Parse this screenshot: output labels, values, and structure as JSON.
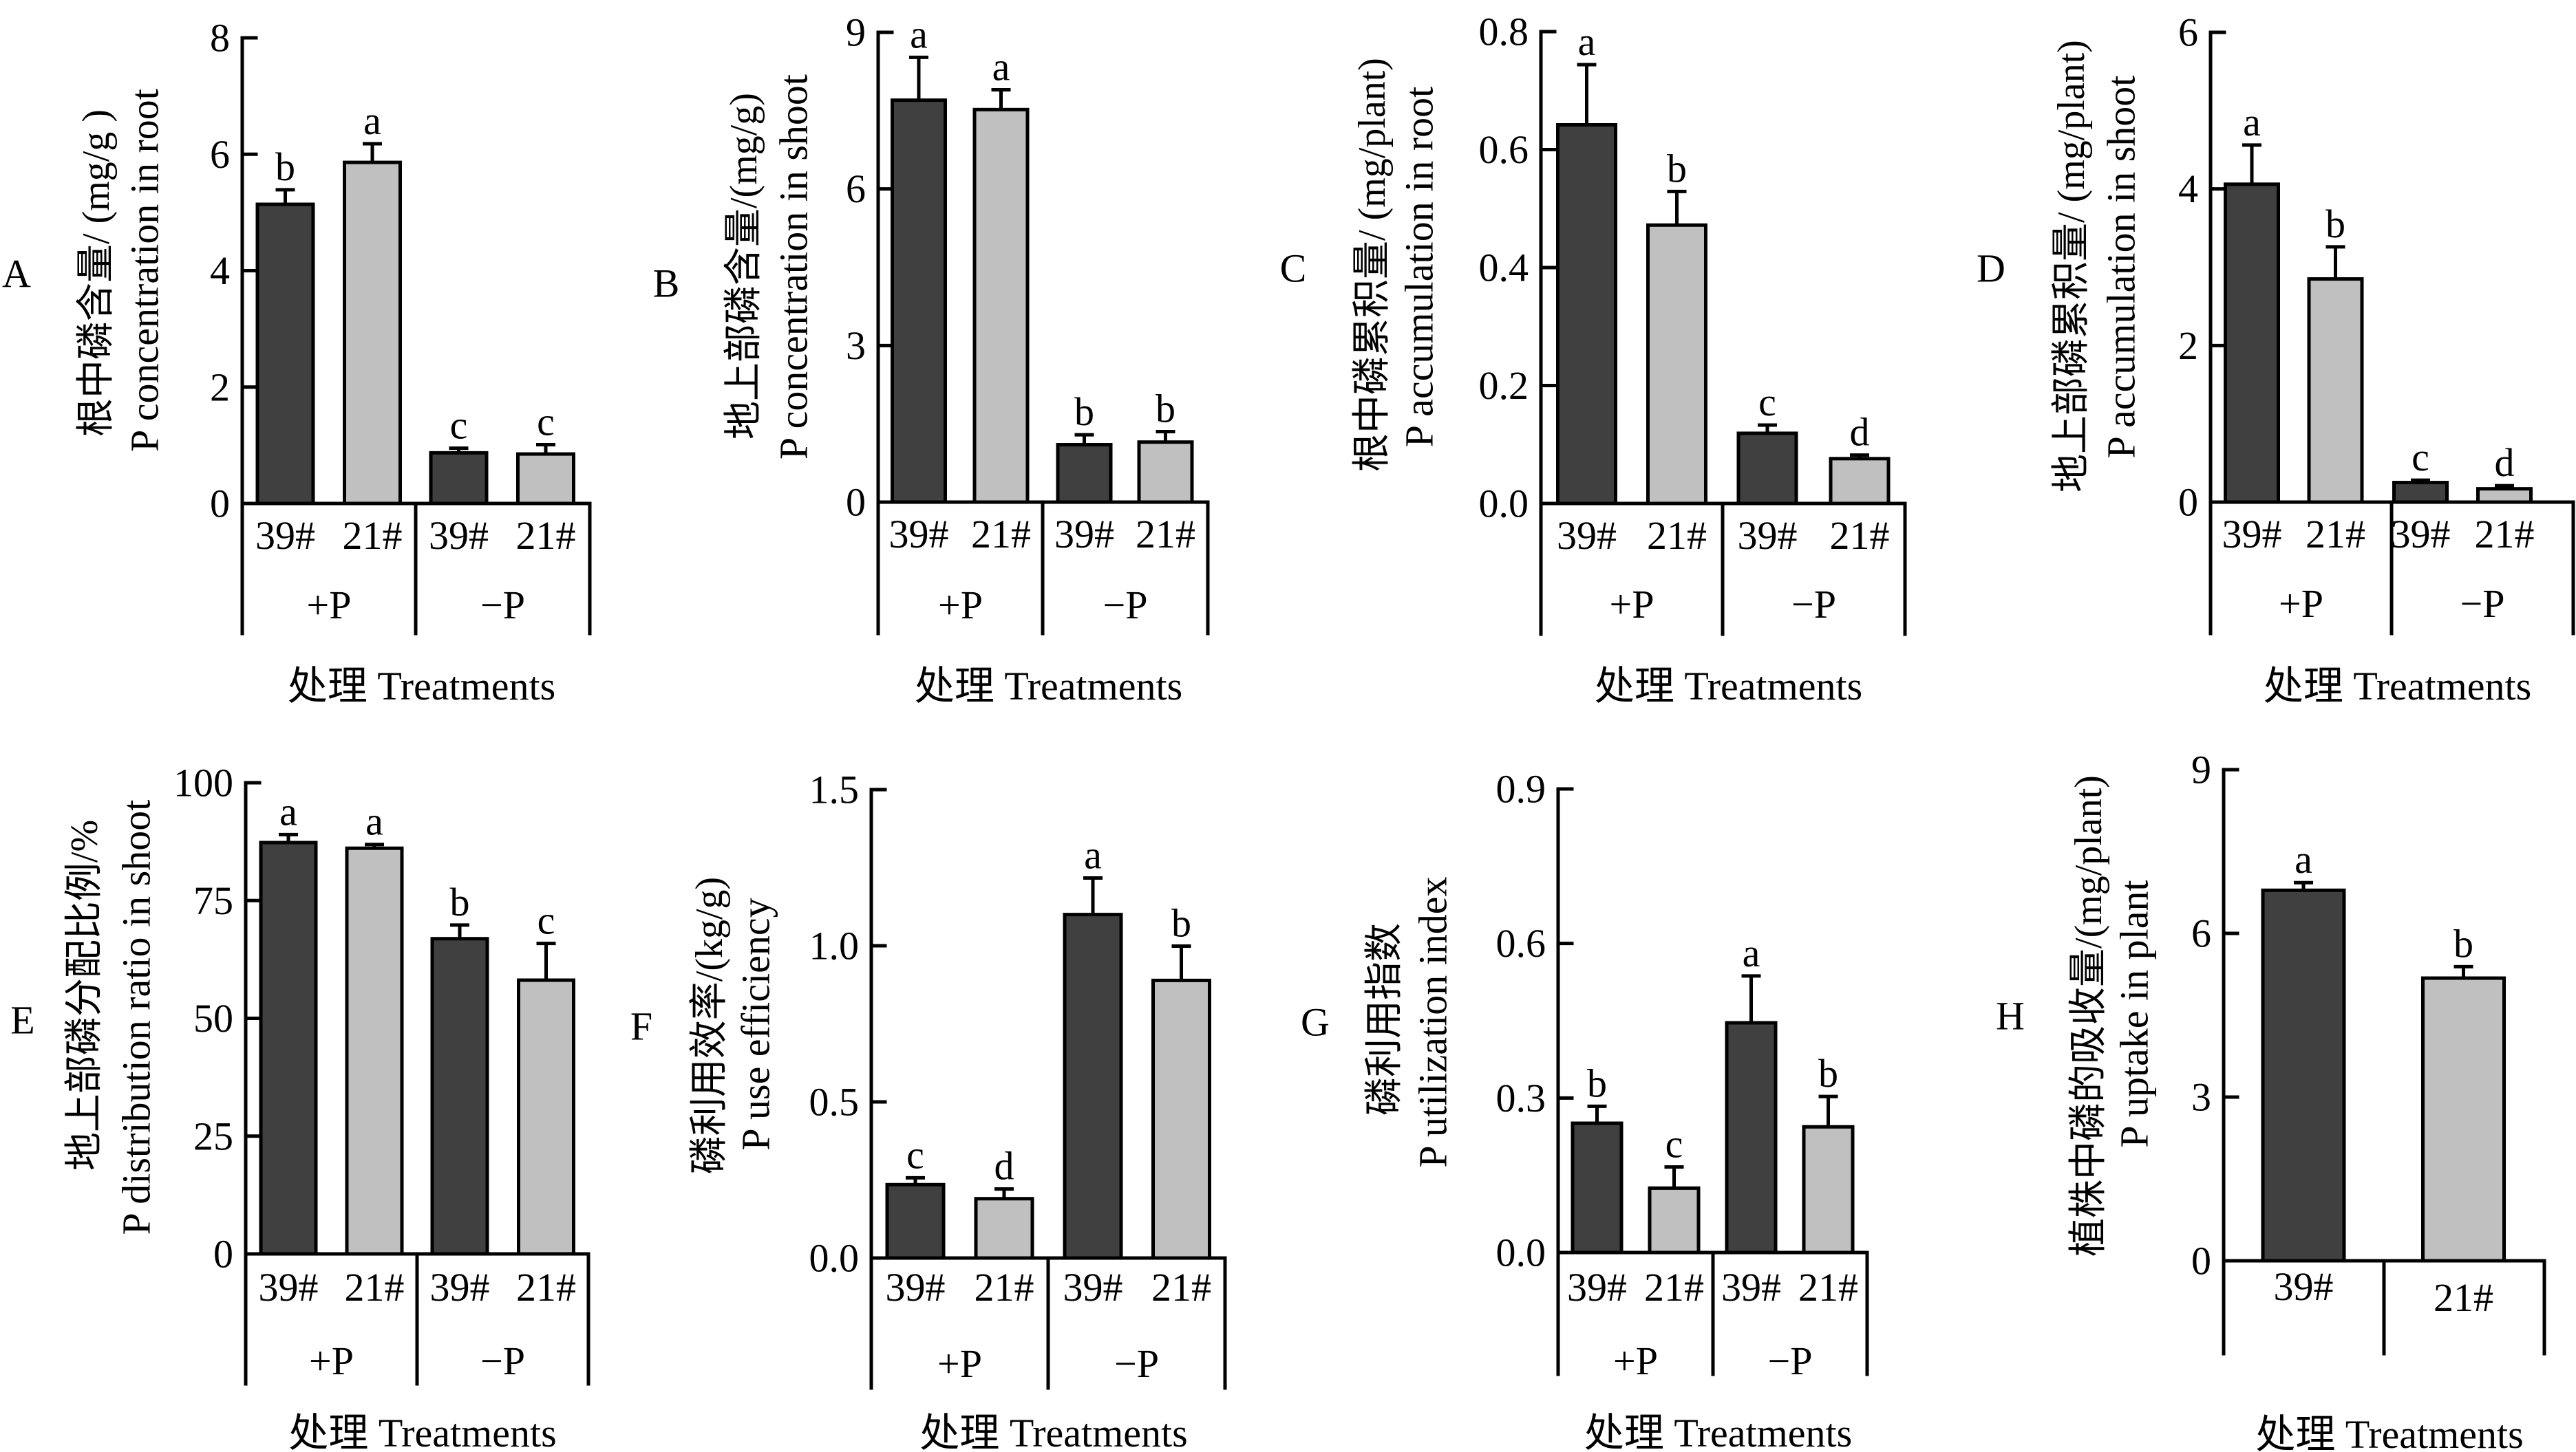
{
  "colors": {
    "39#": "#404040",
    "21#": "#c0c0c0",
    "axis": "#000000"
  },
  "chart_data": [
    {
      "panel": "A",
      "type": "bar",
      "title": "",
      "ylabel_cn": "根中磷含量/ (mg/g )",
      "ylabel_en": "P concentration in root",
      "xlabel": "处理 Treatments",
      "categories": [
        "39#",
        "21#",
        "39#",
        "21#"
      ],
      "groups": [
        {
          "label": "+P"
        },
        {
          "label": "−P"
        }
      ],
      "group_of_category": [
        "+P",
        "+P",
        "−P",
        "−P"
      ],
      "values": [
        5.14,
        5.86,
        0.87,
        0.85
      ],
      "errors": [
        0.25,
        0.32,
        0.08,
        0.16
      ],
      "letters": [
        "b",
        "a",
        "c",
        "c"
      ],
      "ylim": [
        0,
        8
      ],
      "yticks": [
        "0",
        "2",
        "4",
        "6",
        "8"
      ],
      "grid": false,
      "legend": "none"
    },
    {
      "panel": "B",
      "type": "bar",
      "title": "",
      "ylabel_cn": "地上部磷含量/(mg/g)",
      "ylabel_en": "P concentration in shoot",
      "xlabel": "处理 Treatments",
      "categories": [
        "39#",
        "21#",
        "39#",
        "21#"
      ],
      "groups": [
        {
          "label": "+P"
        },
        {
          "label": "−P"
        }
      ],
      "group_of_category": [
        "+P",
        "+P",
        "−P",
        "−P"
      ],
      "values": [
        7.7,
        7.52,
        1.1,
        1.15
      ],
      "errors": [
        0.82,
        0.38,
        0.19,
        0.2
      ],
      "letters": [
        "a",
        "a",
        "b",
        "b"
      ],
      "ylim": [
        0,
        9
      ],
      "yticks": [
        "0",
        "3",
        "6",
        "9"
      ],
      "grid": false,
      "legend": "none"
    },
    {
      "panel": "C",
      "type": "bar",
      "title": "",
      "ylabel_cn": "根中磷累积量/ (mg/plant)",
      "ylabel_en": "P accumulation in root",
      "xlabel": "处理 Treatments",
      "categories": [
        "39#",
        "21#",
        "39#",
        "21#"
      ],
      "groups": [
        {
          "label": "+P"
        },
        {
          "label": "−P"
        }
      ],
      "group_of_category": [
        "+P",
        "+P",
        "−P",
        "−P"
      ],
      "values": [
        0.642,
        0.472,
        0.119,
        0.076
      ],
      "errors": [
        0.102,
        0.057,
        0.014,
        0.006
      ],
      "letters": [
        "a",
        "b",
        "c",
        "d"
      ],
      "ylim": [
        0,
        0.8
      ],
      "yticks": [
        "0.0",
        "0.2",
        "0.4",
        "0.6",
        "0.8"
      ],
      "grid": false,
      "legend": "none"
    },
    {
      "panel": "D",
      "type": "bar",
      "title": "",
      "ylabel_cn": "地上部磷累积量/ (mg/plant)",
      "ylabel_en": "P accumulation in shoot",
      "xlabel": "处理 Treatments",
      "categories": [
        "39#",
        "21#",
        "39#",
        "21#"
      ],
      "groups": [
        {
          "label": "+P"
        },
        {
          "label": "−P"
        }
      ],
      "group_of_category": [
        "+P",
        "+P",
        "−P",
        "−P"
      ],
      "values": [
        4.06,
        2.85,
        0.25,
        0.17
      ],
      "errors": [
        0.5,
        0.41,
        0.03,
        0.04
      ],
      "letters": [
        "a",
        "b",
        "c",
        "d"
      ],
      "ylim": [
        0,
        6
      ],
      "yticks": [
        "0",
        "2",
        "4",
        "6"
      ],
      "grid": false,
      "legend": "none"
    },
    {
      "panel": "E",
      "type": "bar",
      "title": "",
      "ylabel_cn": "地上部磷分配比例/%",
      "ylabel_en": "P distribution ratio in shoot",
      "xlabel": "处理 Treatments",
      "categories": [
        "39#",
        "21#",
        "39#",
        "21#"
      ],
      "groups": [
        {
          "label": "+P"
        },
        {
          "label": "−P"
        }
      ],
      "group_of_category": [
        "+P",
        "+P",
        "−P",
        "−P"
      ],
      "values": [
        87.3,
        86.1,
        66.9,
        58.1
      ],
      "errors": [
        1.7,
        0.8,
        2.9,
        7.8
      ],
      "letters": [
        "a",
        "a",
        "b",
        "c"
      ],
      "ylim": [
        0,
        100
      ],
      "yticks": [
        "0",
        "25",
        "50",
        "75",
        "100"
      ],
      "grid": false,
      "legend": "none"
    },
    {
      "panel": "F",
      "type": "bar",
      "title": "",
      "ylabel_cn": "磷利用效率/(kg/g)",
      "ylabel_en": "P use efficiency",
      "xlabel": "处理 Treatments",
      "categories": [
        "39#",
        "21#",
        "39#",
        "21#"
      ],
      "groups": [
        {
          "label": "+P"
        },
        {
          "label": "−P"
        }
      ],
      "group_of_category": [
        "+P",
        "+P",
        "−P",
        "−P"
      ],
      "values": [
        0.235,
        0.19,
        1.1,
        0.889
      ],
      "errors": [
        0.022,
        0.031,
        0.117,
        0.11
      ],
      "letters": [
        "c",
        "d",
        "a",
        "b"
      ],
      "ylim": [
        0,
        1.5
      ],
      "yticks": [
        "0.0",
        "0.5",
        "1.0",
        "1.5"
      ],
      "grid": false,
      "legend": "none"
    },
    {
      "panel": "G",
      "type": "bar",
      "title": "",
      "ylabel_cn": "磷利用指数",
      "ylabel_en": "P utilization index",
      "xlabel": "处理 Treatments",
      "categories": [
        "39#",
        "21#",
        "39#",
        "21#"
      ],
      "groups": [
        {
          "label": "+P"
        },
        {
          "label": "−P"
        }
      ],
      "group_of_category": [
        "+P",
        "+P",
        "−P",
        "−P"
      ],
      "values": [
        0.251,
        0.125,
        0.446,
        0.244
      ],
      "errors": [
        0.033,
        0.041,
        0.091,
        0.059
      ],
      "letters": [
        "b",
        "c",
        "a",
        "b"
      ],
      "ylim": [
        0,
        0.9
      ],
      "yticks": [
        "0.0",
        "0.3",
        "0.6",
        "0.9"
      ],
      "grid": false,
      "legend": "none"
    },
    {
      "panel": "H",
      "type": "bar",
      "title": "",
      "ylabel_cn": "植株中磷的吸收量/(mg/plant)",
      "ylabel_en": "P uptake in plant",
      "xlabel": "处理 Treatments",
      "categories": [
        "39#",
        "21#"
      ],
      "groups": [],
      "group_of_category": [],
      "values": [
        6.79,
        5.18
      ],
      "errors": [
        0.14,
        0.21
      ],
      "letters": [
        "a",
        "b"
      ],
      "ylim": [
        0,
        9
      ],
      "yticks": [
        "0",
        "3",
        "6",
        "9"
      ],
      "grid": false,
      "legend": "none"
    }
  ]
}
